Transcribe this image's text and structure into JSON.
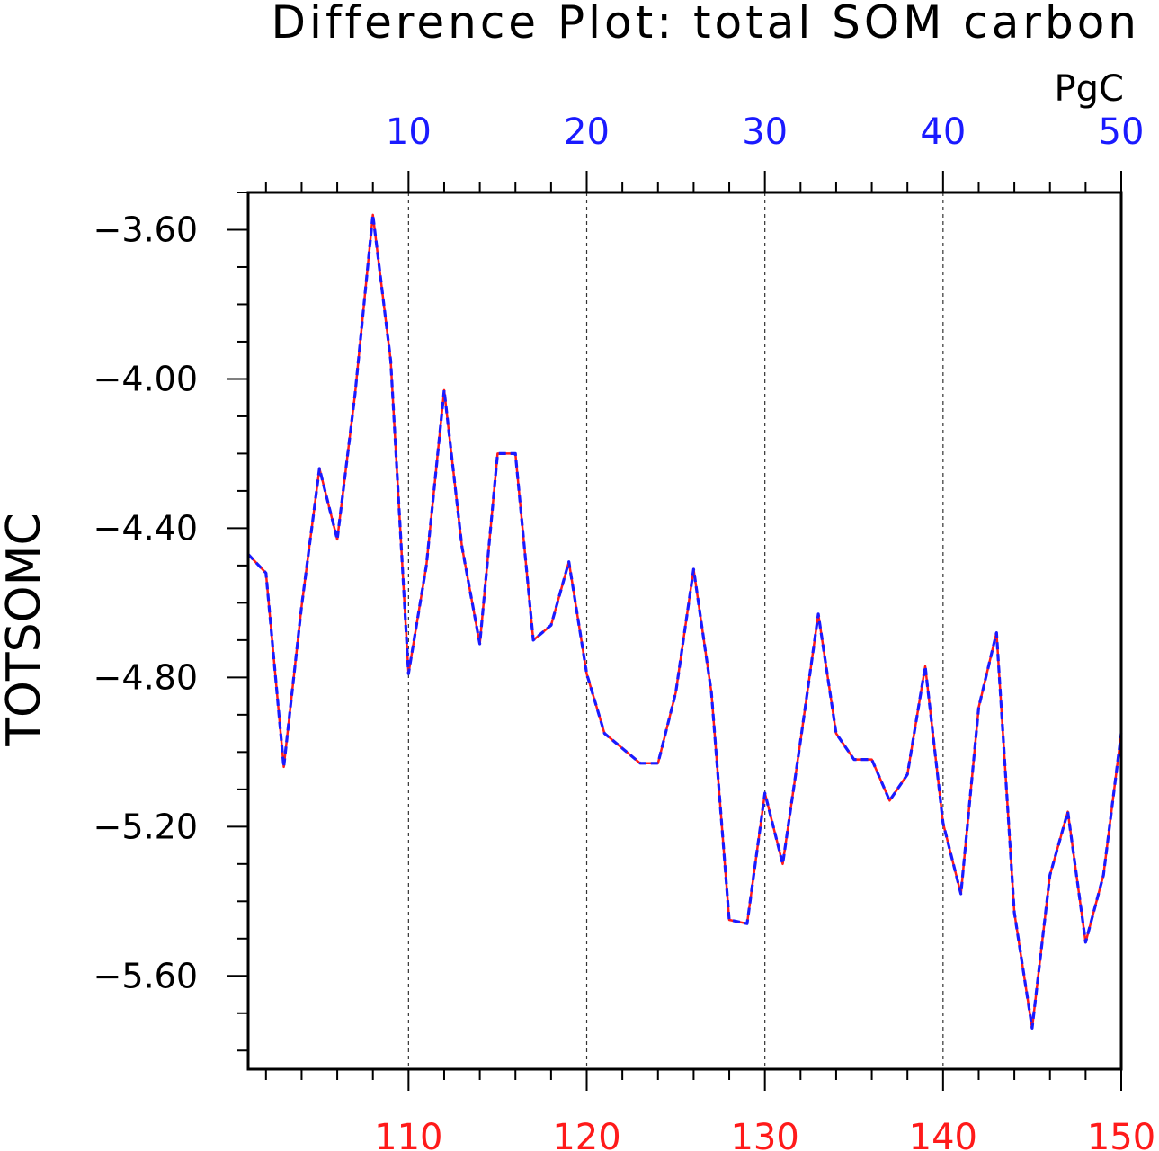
{
  "chart_data": {
    "type": "line",
    "title": "Difference Plot: total SOM carbon",
    "units": "PgC",
    "ylabel": "TOTSOMC",
    "ylim": [
      -5.85,
      -3.5
    ],
    "yticks": [
      -3.6,
      -4.0,
      -4.4,
      -4.8,
      -5.2,
      -5.6
    ],
    "ytick_labels": [
      "−3.60",
      "−4.00",
      "−4.40",
      "−4.80",
      "−5.20",
      "−5.60"
    ],
    "x_top": {
      "range": [
        1,
        50
      ],
      "ticks": [
        10,
        20,
        30,
        40,
        50
      ],
      "tick_labels": [
        "10",
        "20",
        "30",
        "40",
        "50"
      ],
      "color": "#1a1aff"
    },
    "x_bottom": {
      "range": [
        101,
        150
      ],
      "ticks": [
        110,
        120,
        130,
        140,
        150
      ],
      "tick_labels": [
        "110",
        "120",
        "130",
        "140",
        "150"
      ],
      "color": "#ff1a1a"
    },
    "grid": "vertical dashed at major x ticks",
    "series": [
      {
        "axis": "top",
        "color": "#1a1aff",
        "style": "dashed",
        "x": [
          1,
          2,
          3,
          4,
          5,
          6,
          7,
          8,
          9,
          10,
          11,
          12,
          13,
          14,
          15,
          16,
          17,
          18,
          19,
          20,
          21,
          22,
          23,
          24,
          25,
          26,
          27,
          28,
          29,
          30,
          31,
          32,
          33,
          34,
          35,
          36,
          37,
          38,
          39,
          40,
          41,
          42,
          43,
          44,
          45,
          46,
          47,
          48,
          49,
          50
        ],
        "values": [
          -4.47,
          -4.52,
          -5.04,
          -4.61,
          -4.24,
          -4.43,
          -4.04,
          -3.56,
          -3.95,
          -4.79,
          -4.5,
          -4.03,
          -4.45,
          -4.71,
          -4.2,
          -4.2,
          -4.7,
          -4.66,
          -4.49,
          -4.79,
          -4.95,
          -4.99,
          -5.03,
          -5.03,
          -4.84,
          -4.51,
          -4.84,
          -5.45,
          -5.46,
          -5.11,
          -5.3,
          -4.97,
          -4.63,
          -4.95,
          -5.02,
          -5.02,
          -5.13,
          -5.06,
          -4.77,
          -5.19,
          -5.38,
          -4.88,
          -4.68,
          -5.43,
          -5.74,
          -5.33,
          -5.16,
          -5.51,
          -5.33,
          -4.95
        ]
      },
      {
        "axis": "bottom",
        "color": "#ff1a1a",
        "style": "solid",
        "x": [
          101,
          102,
          103,
          104,
          105,
          106,
          107,
          108,
          109,
          110,
          111,
          112,
          113,
          114,
          115,
          116,
          117,
          118,
          119,
          120,
          121,
          122,
          123,
          124,
          125,
          126,
          127,
          128,
          129,
          130,
          131,
          132,
          133,
          134,
          135,
          136,
          137,
          138,
          139,
          140,
          141,
          142,
          143,
          144,
          145,
          146,
          147,
          148,
          149,
          150
        ],
        "values": [
          -4.47,
          -4.52,
          -5.04,
          -4.61,
          -4.24,
          -4.43,
          -4.04,
          -3.56,
          -3.95,
          -4.79,
          -4.5,
          -4.03,
          -4.45,
          -4.71,
          -4.2,
          -4.2,
          -4.7,
          -4.66,
          -4.49,
          -4.79,
          -4.95,
          -4.99,
          -5.03,
          -5.03,
          -4.84,
          -4.51,
          -4.84,
          -5.45,
          -5.46,
          -5.11,
          -5.3,
          -4.97,
          -4.63,
          -4.95,
          -5.02,
          -5.02,
          -5.13,
          -5.06,
          -4.77,
          -5.19,
          -5.38,
          -4.88,
          -4.68,
          -5.43,
          -5.74,
          -5.33,
          -5.16,
          -5.51,
          -5.33,
          -4.95
        ]
      }
    ]
  }
}
